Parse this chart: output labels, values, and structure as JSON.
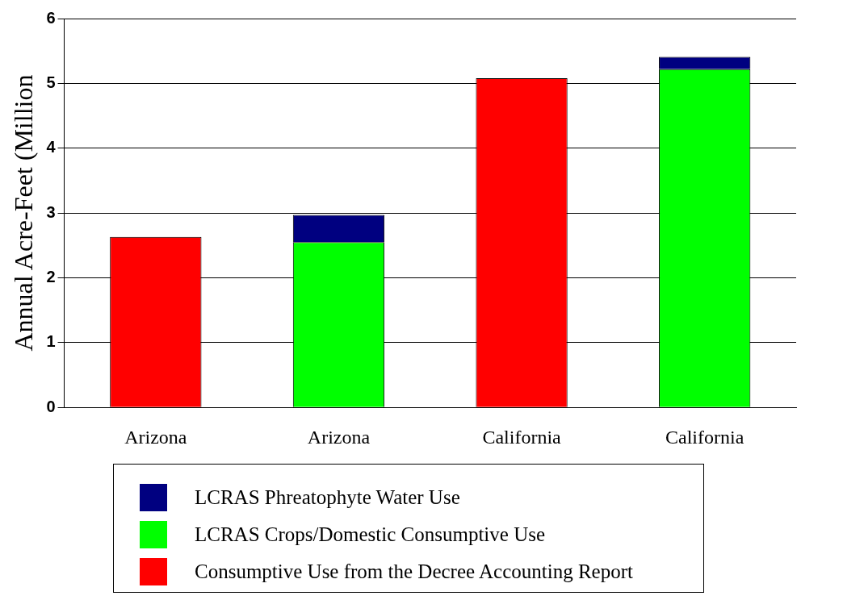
{
  "chart_data": {
    "type": "bar",
    "stacked": true,
    "ylabel": "Annual Acre-Feet (Million",
    "categories": [
      "Arizona",
      "Arizona",
      "California",
      "California"
    ],
    "series": [
      {
        "name": "Consumptive Use from the Decree Accounting Report",
        "color": "#ff0000",
        "values": [
          2.63,
          null,
          5.08,
          null
        ]
      },
      {
        "name": "LCRAS Crops/Domestic Consumptive Use",
        "color": "#00ff00",
        "values": [
          null,
          2.55,
          null,
          5.22
        ]
      },
      {
        "name": "LCRAS Phreatophyte Water Use",
        "color": "#000080",
        "values": [
          null,
          0.42,
          null,
          0.19
        ]
      }
    ],
    "ylim": [
      0,
      6
    ],
    "yticks": [
      0,
      1,
      2,
      3,
      4,
      5,
      6
    ],
    "grid": "y",
    "legend": "bottom"
  }
}
